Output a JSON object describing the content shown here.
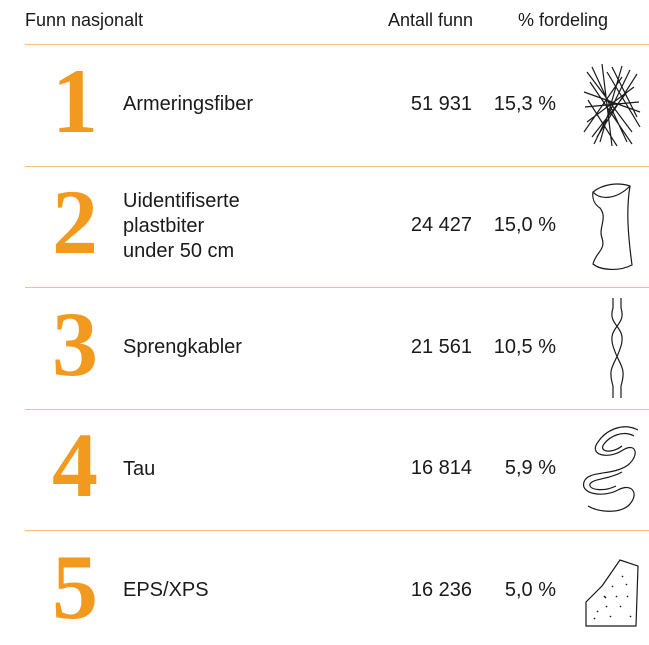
{
  "table": {
    "header": [
      "Funn nasjonalt",
      "Antall funn",
      "% fordeling"
    ],
    "rows": [
      {
        "rank": "1",
        "name": [
          "Armeringsfiber"
        ],
        "count": "51 931",
        "share": "15,3 %"
      },
      {
        "rank": "2",
        "name": [
          "Uidentifiserte",
          "plastbiter",
          "under 50 cm"
        ],
        "count": "24 427",
        "share": "15,0 %"
      },
      {
        "rank": "3",
        "name": [
          "Sprengkabler"
        ],
        "count": "21 561",
        "share": "10,5 %"
      },
      {
        "rank": "4",
        "name": [
          "Tau"
        ],
        "count": "16 814",
        "share": "5,9 %"
      },
      {
        "rank": "5",
        "name": [
          "EPS/XPS"
        ],
        "count": "16 236",
        "share": "5,0 %"
      }
    ]
  }
}
